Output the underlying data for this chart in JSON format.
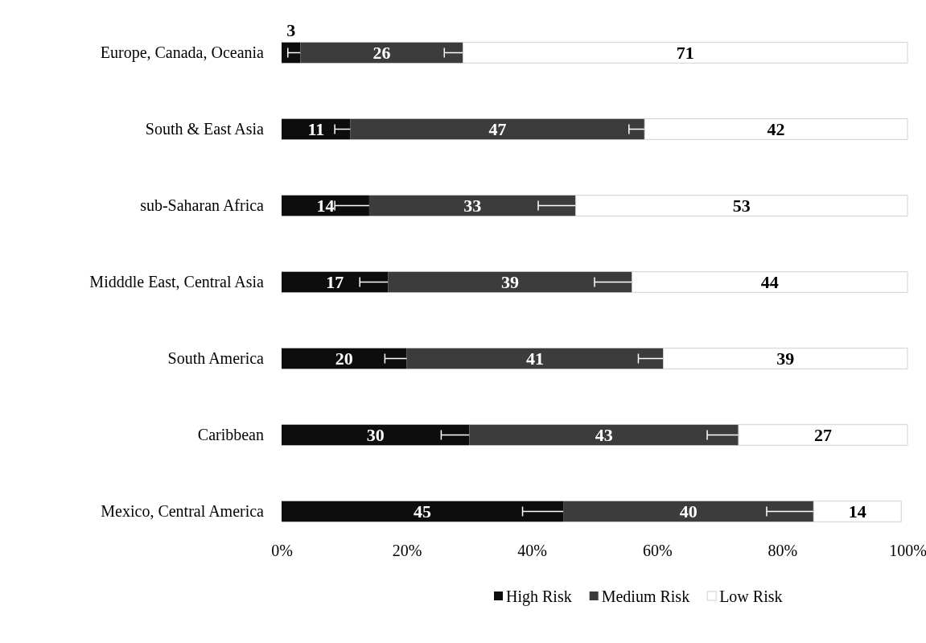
{
  "chart_data": {
    "type": "bar",
    "orientation": "horizontal",
    "stacked": true,
    "data_labels": true,
    "legend": "bottom",
    "grid": false,
    "categories": [
      "Europe, Canada, Oceania",
      "South & East Asia",
      "sub-Saharan Africa",
      "Midddle East, Central Asia",
      "South America",
      "Caribbean",
      "Mexico, Central America"
    ],
    "xlim": [
      0,
      100
    ],
    "xticks": [
      {
        "value": 0,
        "label": "0%"
      },
      {
        "value": 20,
        "label": "20%"
      },
      {
        "value": 40,
        "label": "40%"
      },
      {
        "value": 60,
        "label": "60%"
      },
      {
        "value": 80,
        "label": "80%"
      },
      {
        "value": 100,
        "label": "100%"
      }
    ],
    "series": [
      {
        "name": "High Risk",
        "color": "#0d0d0d",
        "values": [
          3,
          11,
          14,
          17,
          20,
          30,
          45
        ],
        "errors": [
          2,
          2.5,
          5.5,
          4.5,
          3.5,
          4.5,
          6.5
        ]
      },
      {
        "name": "Medium Risk",
        "color": "#3c3c3c",
        "values": [
          26,
          47,
          33,
          39,
          41,
          43,
          40
        ],
        "errors": [
          3,
          2.5,
          6,
          6,
          4,
          5,
          7.5
        ]
      },
      {
        "name": "Low Risk",
        "color": "#ffffff",
        "values": [
          71,
          42,
          53,
          44,
          39,
          27,
          14
        ]
      }
    ]
  }
}
